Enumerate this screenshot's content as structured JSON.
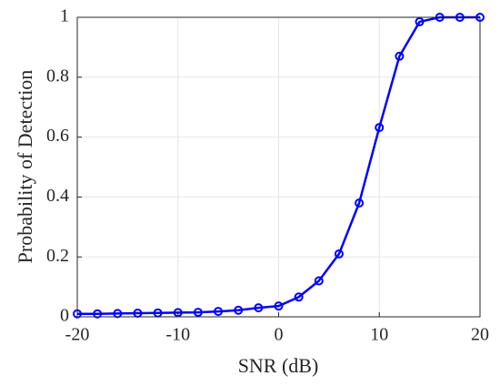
{
  "chart_data": {
    "type": "line",
    "xlabel": "SNR (dB)",
    "ylabel": "Probability of Detection",
    "x": [
      -20,
      -18,
      -16,
      -14,
      -12,
      -10,
      -8,
      -6,
      -4,
      -2,
      0,
      2,
      4,
      6,
      8,
      10,
      12,
      14,
      16,
      18,
      20
    ],
    "series": [
      {
        "color": "#0000ff",
        "marker": "circle",
        "values": [
          0.01,
          0.01,
          0.011,
          0.012,
          0.013,
          0.014,
          0.015,
          0.018,
          0.022,
          0.03,
          0.036,
          0.066,
          0.12,
          0.21,
          0.38,
          0.632,
          0.87,
          0.985,
          1,
          1,
          1
        ]
      }
    ],
    "xlim": [
      -20,
      20
    ],
    "xticks": [
      -20,
      -10,
      0,
      10,
      20
    ],
    "ylim": [
      0,
      1
    ],
    "yticks": [
      0,
      0.2,
      0.4,
      0.6,
      0.8,
      1
    ],
    "grid": true
  }
}
